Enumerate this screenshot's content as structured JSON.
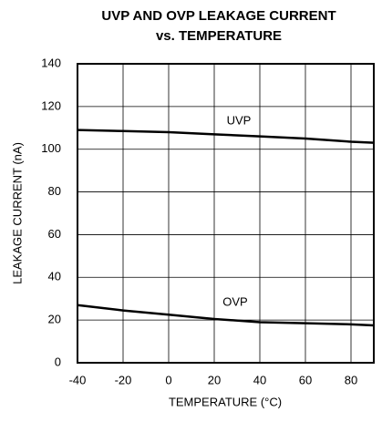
{
  "chart_data": {
    "type": "line",
    "title_lines": [
      "UVP AND OVP LEAKAGE CURRENT",
      "vs. TEMPERATURE"
    ],
    "x_label": "TEMPERATURE (°C)",
    "y_label": "LEAKAGE CURRENT (nA)",
    "x": [
      -40,
      -20,
      0,
      20,
      40,
      60,
      80,
      90
    ],
    "series": [
      {
        "name": "UVP",
        "color": "#000000",
        "values": [
          109,
          108.5,
          108,
          107,
          106,
          105,
          103.5,
          103
        ]
      },
      {
        "name": "OVP",
        "color": "#000000",
        "values": [
          27,
          24.5,
          22.5,
          20.5,
          19,
          18.5,
          18,
          17.5
        ]
      }
    ],
    "xlim": [
      -40,
      90
    ],
    "xticks": [
      -40,
      -20,
      0,
      20,
      40,
      60,
      80
    ],
    "ylim": [
      0,
      140
    ],
    "yticks": [
      0,
      20,
      40,
      60,
      80,
      100,
      120,
      140
    ],
    "grid": true
  }
}
